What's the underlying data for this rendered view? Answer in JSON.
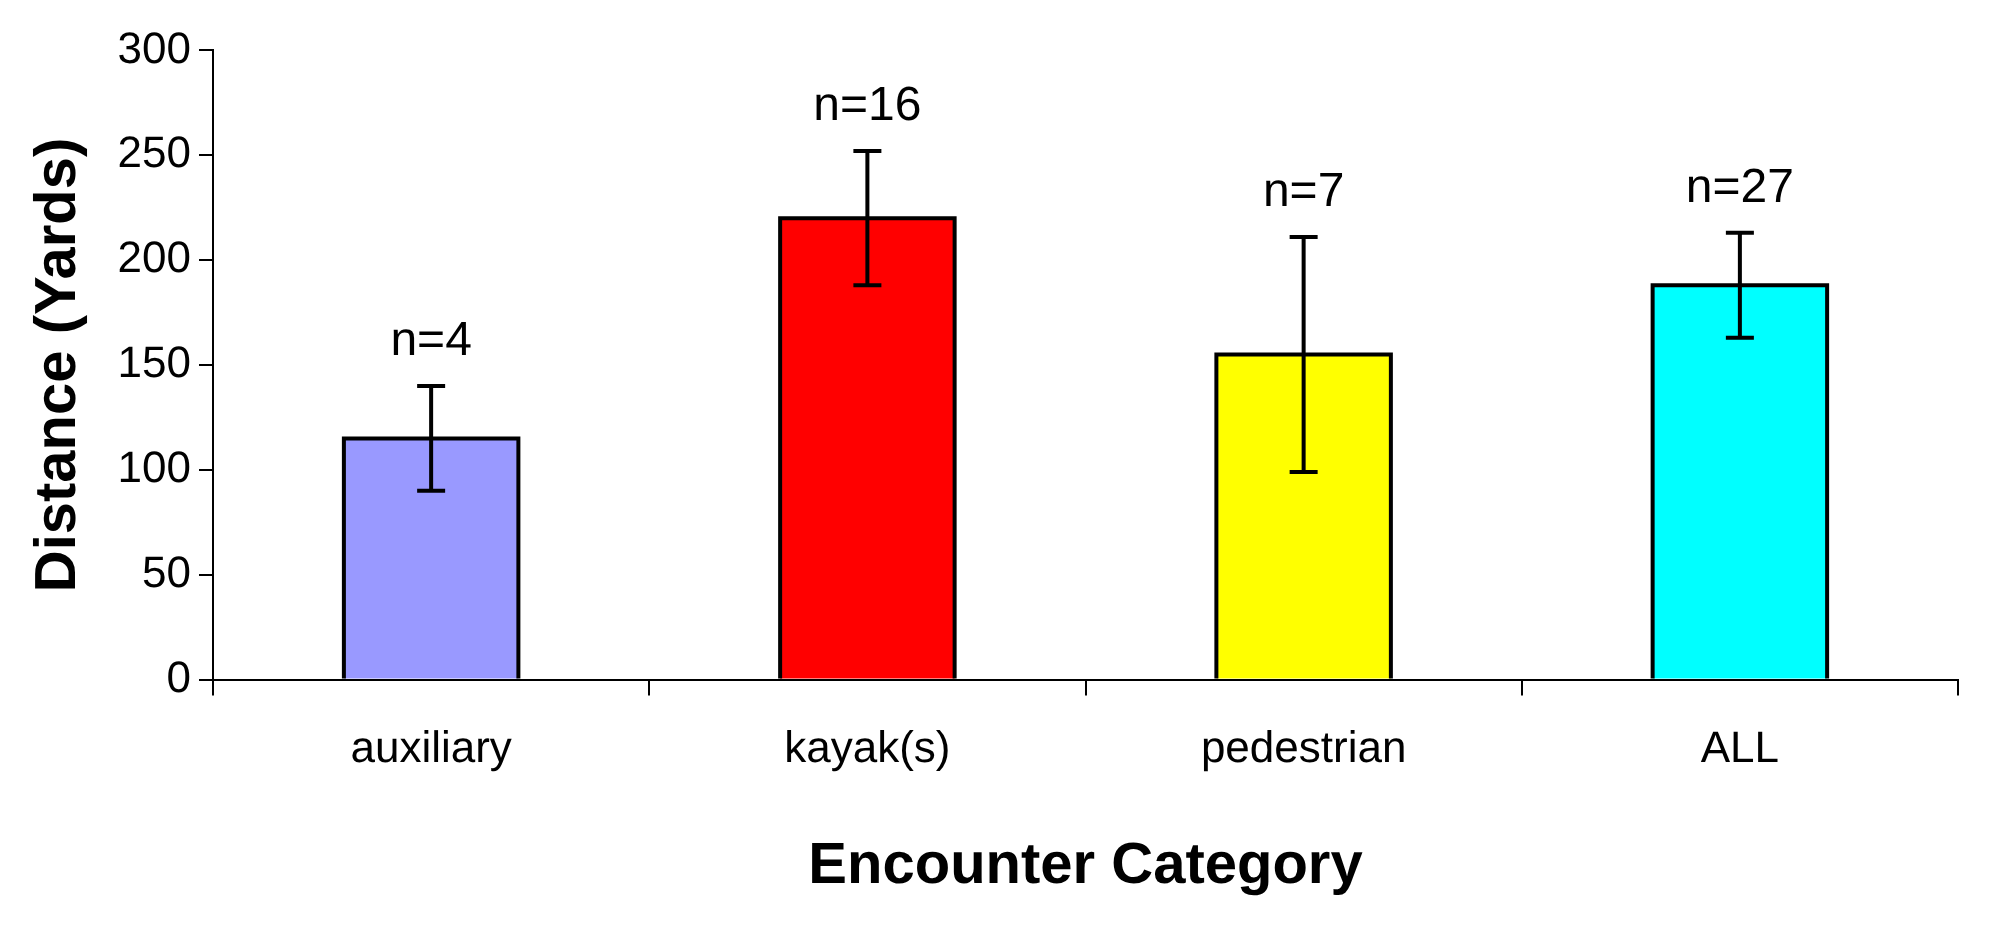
{
  "chart_data": {
    "type": "bar",
    "xlabel": "Encounter Category",
    "ylabel": "Distance (Yards)",
    "categories": [
      "auxiliary",
      "kayak(s)",
      "pedestrian",
      "ALL"
    ],
    "values": [
      115,
      220,
      155,
      188
    ],
    "colors": [
      "#9999ff",
      "#ff0000",
      "#ffff00",
      "#00ffff"
    ],
    "errors": [
      25,
      32,
      56,
      25
    ],
    "ylim": [
      0,
      300
    ],
    "yticks": [
      0,
      50,
      100,
      150,
      200,
      250,
      300
    ],
    "grid": false,
    "legend": false,
    "annotations": [
      {
        "text": "n=4",
        "x": "auxiliary",
        "y": 140
      },
      {
        "text": "n=16",
        "x": "kayak(s)",
        "y": 252
      },
      {
        "text": "n=7",
        "x": "pedestrian",
        "y": 211
      },
      {
        "text": "n=27",
        "x": "ALL",
        "y": 213
      }
    ]
  }
}
